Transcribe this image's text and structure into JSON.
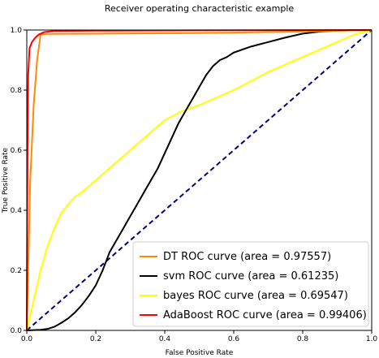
{
  "chart_data": {
    "type": "line",
    "title": "Receiver operating characteristic example",
    "xlabel": "False Positive Rate",
    "ylabel": "True Positive Rate",
    "xlim": [
      0.0,
      1.0
    ],
    "ylim": [
      0.0,
      1.0
    ],
    "xticks": [
      "0.0",
      "0.2",
      "0.4",
      "0.6",
      "0.8",
      "1.0"
    ],
    "yticks": [
      "0.0",
      "0.2",
      "0.4",
      "0.6",
      "0.8",
      "1.0"
    ],
    "grid": false,
    "legend_position": "lower-right",
    "series": [
      {
        "name": "DT ROC curve (area = 0.97557)",
        "color": "#ff8c00",
        "points": [
          [
            0,
            0
          ],
          [
            0.005,
            0.25
          ],
          [
            0.01,
            0.5
          ],
          [
            0.02,
            0.75
          ],
          [
            0.03,
            0.9
          ],
          [
            0.04,
            0.985
          ],
          [
            0.06,
            0.987
          ],
          [
            0.2,
            0.988
          ],
          [
            0.5,
            0.99
          ],
          [
            0.8,
            0.995
          ],
          [
            1,
            1
          ]
        ]
      },
      {
        "name": "svm ROC curve (area = 0.61235)",
        "color": "#000000",
        "points": [
          [
            0,
            0
          ],
          [
            0.04,
            0.002
          ],
          [
            0.06,
            0.005
          ],
          [
            0.08,
            0.012
          ],
          [
            0.1,
            0.025
          ],
          [
            0.12,
            0.04
          ],
          [
            0.14,
            0.06
          ],
          [
            0.16,
            0.085
          ],
          [
            0.18,
            0.115
          ],
          [
            0.2,
            0.15
          ],
          [
            0.22,
            0.2
          ],
          [
            0.24,
            0.26
          ],
          [
            0.26,
            0.3
          ],
          [
            0.28,
            0.34
          ],
          [
            0.3,
            0.38
          ],
          [
            0.32,
            0.42
          ],
          [
            0.34,
            0.46
          ],
          [
            0.36,
            0.5
          ],
          [
            0.38,
            0.54
          ],
          [
            0.4,
            0.59
          ],
          [
            0.42,
            0.64
          ],
          [
            0.44,
            0.69
          ],
          [
            0.46,
            0.73
          ],
          [
            0.48,
            0.77
          ],
          [
            0.5,
            0.81
          ],
          [
            0.52,
            0.85
          ],
          [
            0.54,
            0.88
          ],
          [
            0.56,
            0.9
          ],
          [
            0.58,
            0.91
          ],
          [
            0.6,
            0.925
          ],
          [
            0.65,
            0.945
          ],
          [
            0.7,
            0.96
          ],
          [
            0.75,
            0.975
          ],
          [
            0.8,
            0.988
          ],
          [
            0.85,
            0.995
          ],
          [
            0.9,
            0.998
          ],
          [
            1,
            1
          ]
        ]
      },
      {
        "name": "bayes ROC curve (area = 0.69547)",
        "color": "#ffff00",
        "points": [
          [
            0,
            0
          ],
          [
            0.02,
            0.1
          ],
          [
            0.04,
            0.2
          ],
          [
            0.06,
            0.28
          ],
          [
            0.08,
            0.34
          ],
          [
            0.1,
            0.39
          ],
          [
            0.12,
            0.42
          ],
          [
            0.14,
            0.445
          ],
          [
            0.16,
            0.46
          ],
          [
            0.18,
            0.48
          ],
          [
            0.2,
            0.5
          ],
          [
            0.25,
            0.55
          ],
          [
            0.3,
            0.6
          ],
          [
            0.35,
            0.65
          ],
          [
            0.4,
            0.7
          ],
          [
            0.45,
            0.73
          ],
          [
            0.5,
            0.75
          ],
          [
            0.55,
            0.775
          ],
          [
            0.6,
            0.8
          ],
          [
            0.65,
            0.83
          ],
          [
            0.7,
            0.86
          ],
          [
            0.75,
            0.885
          ],
          [
            0.8,
            0.91
          ],
          [
            0.85,
            0.935
          ],
          [
            0.9,
            0.96
          ],
          [
            0.95,
            0.985
          ],
          [
            1,
            1
          ]
        ]
      },
      {
        "name": "AdaBoost ROC curve (area = 0.99406)",
        "color": "#ff0000",
        "points": [
          [
            0,
            0
          ],
          [
            0.001,
            0.3
          ],
          [
            0.002,
            0.6
          ],
          [
            0.004,
            0.85
          ],
          [
            0.008,
            0.94
          ],
          [
            0.015,
            0.96
          ],
          [
            0.025,
            0.975
          ],
          [
            0.035,
            0.985
          ],
          [
            0.05,
            0.993
          ],
          [
            0.08,
            0.997
          ],
          [
            0.2,
            0.998
          ],
          [
            0.5,
            0.999
          ],
          [
            1,
            1
          ]
        ]
      }
    ],
    "reference_line": {
      "color": "#00007f",
      "points": [
        [
          0,
          0
        ],
        [
          1,
          1
        ]
      ]
    }
  }
}
